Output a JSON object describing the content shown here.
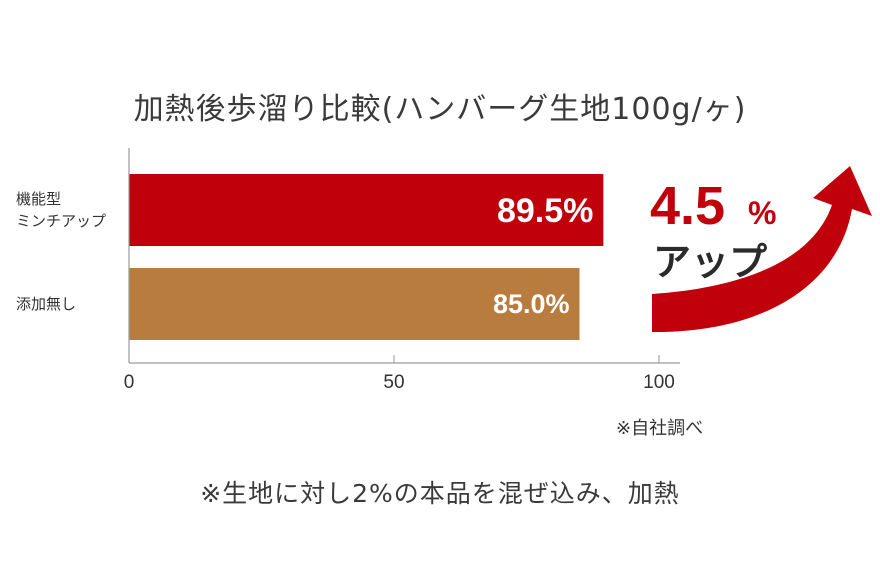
{
  "title": "加熱後歩溜り比較(ハンバーグ生地100g/ヶ)",
  "chart_data": {
    "type": "bar",
    "orientation": "horizontal",
    "categories": [
      "機能型ミンチアップ",
      "添加無し"
    ],
    "category_lines": [
      [
        "機能型",
        "ミンチアップ"
      ],
      [
        "添加無し"
      ]
    ],
    "values": [
      89.5,
      85.0
    ],
    "value_labels": [
      "89.5%",
      "85.0%"
    ],
    "colors": [
      "#c0000b",
      "#b87d3e"
    ],
    "xlim": [
      0,
      100
    ],
    "xticks": [
      0,
      50,
      100
    ],
    "grid": false
  },
  "callout": {
    "number": "4.5",
    "unit": "%",
    "word": "アップ",
    "color": "#c0000b"
  },
  "source": "※自社調べ",
  "footnote": "※生地に対し2%の本品を混ぜ込み、加熱"
}
